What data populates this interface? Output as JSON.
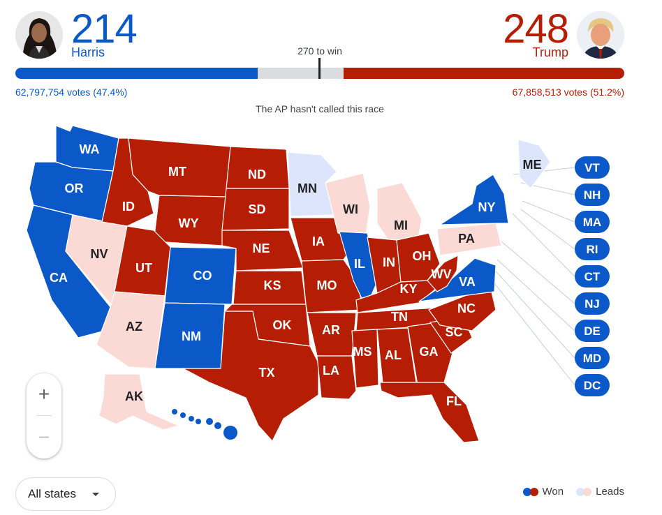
{
  "header": {
    "left": {
      "ev": "214",
      "name": "Harris",
      "votes": "62,797,754 votes (47.4%)",
      "color": "#0b59c9"
    },
    "right": {
      "ev": "248",
      "name": "Trump",
      "votes": "67,858,513 votes (51.2%)",
      "color": "#b51e05"
    },
    "win_label": "270 to win",
    "status": "The AP hasn't called this race",
    "bar": {
      "total": 538,
      "dem": 214,
      "rep": 248
    }
  },
  "colors": {
    "dem_won": "#0b59c9",
    "rep_won": "#b51e05",
    "dem_leads": "#dce5fb",
    "rep_leads": "#fbd9d4",
    "border": "#ffffff"
  },
  "states": [
    {
      "abbr": "WA",
      "status": "dem_won"
    },
    {
      "abbr": "OR",
      "status": "dem_won"
    },
    {
      "abbr": "CA",
      "status": "dem_won"
    },
    {
      "abbr": "NV",
      "status": "rep_leads"
    },
    {
      "abbr": "ID",
      "status": "rep_won"
    },
    {
      "abbr": "MT",
      "status": "rep_won"
    },
    {
      "abbr": "WY",
      "status": "rep_won"
    },
    {
      "abbr": "UT",
      "status": "rep_won"
    },
    {
      "abbr": "AZ",
      "status": "rep_leads"
    },
    {
      "abbr": "CO",
      "status": "dem_won"
    },
    {
      "abbr": "NM",
      "status": "dem_won"
    },
    {
      "abbr": "ND",
      "status": "rep_won"
    },
    {
      "abbr": "SD",
      "status": "rep_won"
    },
    {
      "abbr": "NE",
      "status": "rep_won"
    },
    {
      "abbr": "KS",
      "status": "rep_won"
    },
    {
      "abbr": "OK",
      "status": "rep_won"
    },
    {
      "abbr": "TX",
      "status": "rep_won"
    },
    {
      "abbr": "MN",
      "status": "dem_leads"
    },
    {
      "abbr": "IA",
      "status": "rep_won"
    },
    {
      "abbr": "MO",
      "status": "rep_won"
    },
    {
      "abbr": "AR",
      "status": "rep_won"
    },
    {
      "abbr": "LA",
      "status": "rep_won"
    },
    {
      "abbr": "WI",
      "status": "rep_leads"
    },
    {
      "abbr": "IL",
      "status": "dem_won"
    },
    {
      "abbr": "MI",
      "status": "rep_leads"
    },
    {
      "abbr": "IN",
      "status": "rep_won"
    },
    {
      "abbr": "OH",
      "status": "rep_won"
    },
    {
      "abbr": "KY",
      "status": "rep_won"
    },
    {
      "abbr": "TN",
      "status": "rep_won"
    },
    {
      "abbr": "MS",
      "status": "rep_won"
    },
    {
      "abbr": "AL",
      "status": "rep_won"
    },
    {
      "abbr": "GA",
      "status": "rep_won"
    },
    {
      "abbr": "FL",
      "status": "rep_won"
    },
    {
      "abbr": "SC",
      "status": "rep_won"
    },
    {
      "abbr": "NC",
      "status": "rep_won"
    },
    {
      "abbr": "VA",
      "status": "dem_won"
    },
    {
      "abbr": "WV",
      "status": "rep_won"
    },
    {
      "abbr": "PA",
      "status": "rep_leads"
    },
    {
      "abbr": "NY",
      "status": "dem_won"
    },
    {
      "abbr": "ME",
      "status": "dem_leads"
    },
    {
      "abbr": "AK",
      "status": "rep_leads"
    },
    {
      "abbr": "HI",
      "status": "dem_won"
    }
  ],
  "callouts": [
    {
      "abbr": "VT",
      "status": "dem_won"
    },
    {
      "abbr": "NH",
      "status": "dem_won"
    },
    {
      "abbr": "MA",
      "status": "dem_won"
    },
    {
      "abbr": "RI",
      "status": "dem_won"
    },
    {
      "abbr": "CT",
      "status": "dem_won"
    },
    {
      "abbr": "NJ",
      "status": "dem_won"
    },
    {
      "abbr": "DE",
      "status": "dem_won"
    },
    {
      "abbr": "MD",
      "status": "dem_won"
    },
    {
      "abbr": "DC",
      "status": "dem_won"
    }
  ],
  "zoom": {
    "in": "+",
    "out": "−"
  },
  "filter": {
    "selected": "All states"
  },
  "legend": {
    "won": "Won",
    "leads": "Leads"
  }
}
